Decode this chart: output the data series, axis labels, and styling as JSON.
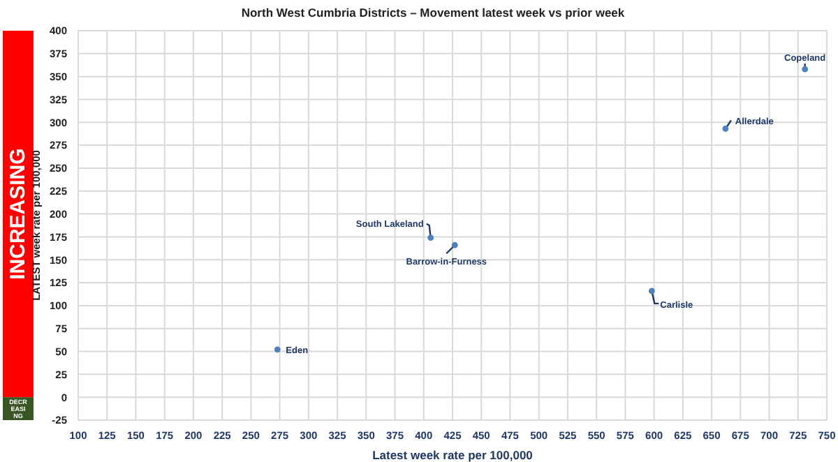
{
  "chart_data": {
    "type": "scatter",
    "title": "North West Cumbria Districts – Movement latest week vs prior week",
    "xlabel": "Latest  week rate per 100,000",
    "ylabel": "LATEST week rate per 100,000",
    "xlim": [
      100,
      750
    ],
    "xticks": [
      100,
      125,
      150,
      175,
      200,
      225,
      250,
      275,
      300,
      325,
      350,
      375,
      400,
      425,
      450,
      475,
      500,
      525,
      550,
      575,
      600,
      625,
      650,
      675,
      700,
      725,
      750
    ],
    "ylim": [
      -25,
      400
    ],
    "yticks": [
      -25,
      0,
      25,
      50,
      75,
      100,
      125,
      150,
      175,
      200,
      225,
      250,
      275,
      300,
      325,
      350,
      375,
      400
    ],
    "grid": true,
    "marker": "circle",
    "series": [
      {
        "color": "#4f81bd",
        "x": [
          731,
          662,
          406,
          427,
          598,
          273
        ],
        "values": [
          358,
          293,
          174,
          166,
          116,
          52
        ]
      }
    ],
    "annotations": [
      {
        "text": "Copeland",
        "x": 731,
        "y": 358
      },
      {
        "text": "Allerdale",
        "x": 662,
        "y": 293
      },
      {
        "text": "South Lakeland",
        "x": 406,
        "y": 174
      },
      {
        "text": "Barrow-in-Furness",
        "x": 427,
        "y": 166
      },
      {
        "text": "Carlisle",
        "x": 598,
        "y": 116
      },
      {
        "text": "Eden",
        "x": 273,
        "y": 52
      },
      "INCREASING",
      "DECREASING"
    ]
  }
}
